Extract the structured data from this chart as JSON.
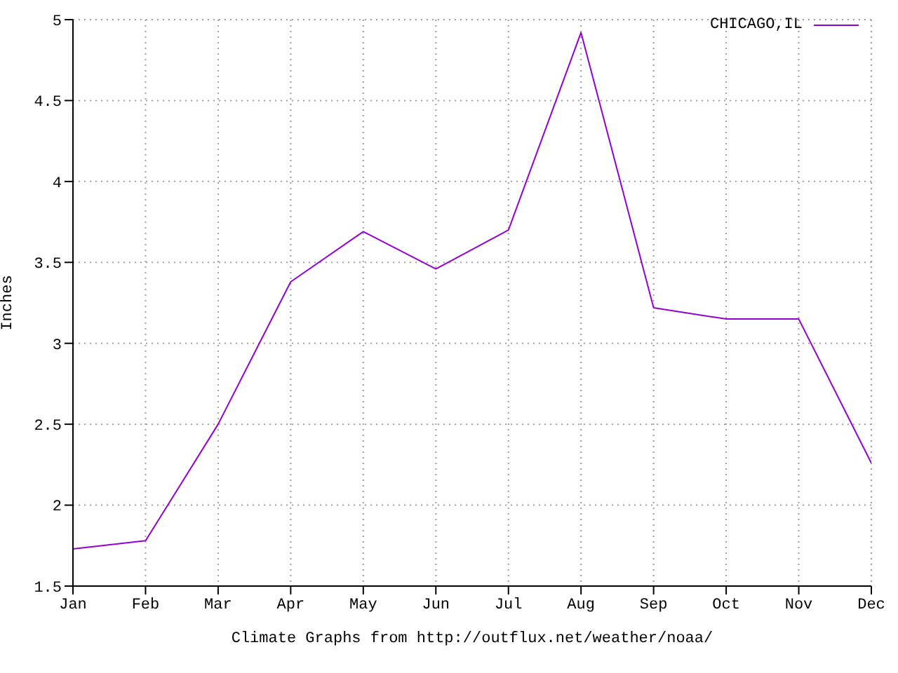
{
  "chart_data": {
    "type": "line",
    "xlabel": "Climate Graphs from http://outflux.net/weather/noaa/",
    "ylabel": "Inches",
    "categories": [
      "Jan",
      "Feb",
      "Mar",
      "Apr",
      "May",
      "Jun",
      "Jul",
      "Aug",
      "Sep",
      "Oct",
      "Nov",
      "Dec"
    ],
    "series": [
      {
        "name": "CHICAGO,IL",
        "color": "#9400d3",
        "values": [
          1.73,
          1.78,
          2.5,
          3.38,
          3.69,
          3.46,
          3.7,
          4.92,
          3.22,
          3.15,
          3.15,
          2.26
        ]
      }
    ],
    "ylim": [
      1.5,
      5
    ],
    "yticks": [
      1.5,
      2,
      2.5,
      3,
      3.5,
      4,
      4.5,
      5
    ],
    "grid": true,
    "legend": "top right",
    "marker": "none",
    "line_style": "solid"
  }
}
